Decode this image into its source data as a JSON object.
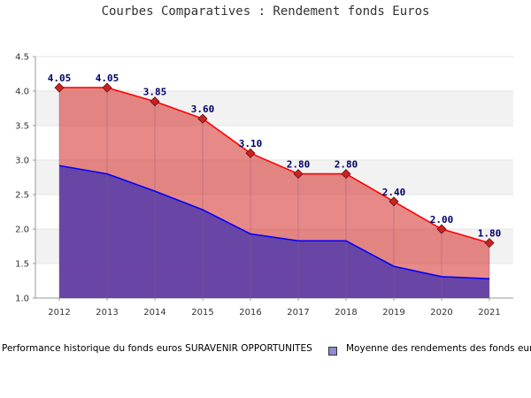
{
  "chart_data": {
    "type": "area",
    "title": "Courbes Comparatives : Rendement fonds Euros",
    "xlabel": "",
    "ylabel": "",
    "categories": [
      "2012",
      "2013",
      "2014",
      "2015",
      "2016",
      "2017",
      "2018",
      "2019",
      "2020",
      "2021"
    ],
    "ylim": [
      1.0,
      4.5
    ],
    "yticks": [
      "1.0",
      "1.5",
      "2.0",
      "2.5",
      "3.0",
      "3.5",
      "4.0",
      "4.5"
    ],
    "grid": "horizontal bands",
    "legend_position": "bottom",
    "series": [
      {
        "name": "Performance historique du fonds euros SURAVENIR OPPORTUNITES",
        "values": [
          4.05,
          4.05,
          3.85,
          3.6,
          3.1,
          2.8,
          2.8,
          2.4,
          2.0,
          1.8
        ],
        "data_labels": [
          "4.05",
          "4.05",
          "3.85",
          "3.60",
          "3.10",
          "2.80",
          "2.80",
          "2.40",
          "2.00",
          "1.80"
        ],
        "line_color": "#ff0000",
        "fill_color": "#d9403e",
        "marker_color": "#cc2222"
      },
      {
        "name": "Moyenne des rendements des fonds eur",
        "values": [
          2.92,
          2.8,
          2.55,
          2.28,
          1.93,
          1.83,
          1.83,
          1.46,
          1.31,
          1.28
        ],
        "line_color": "#0000ff",
        "fill_color": "#5b3fa8"
      }
    ],
    "colors": {
      "band_light": "#f2f2f2",
      "band_white": "#ffffff",
      "axis": "#999999",
      "tick_text": "#333333",
      "data_label": "#000066"
    }
  }
}
